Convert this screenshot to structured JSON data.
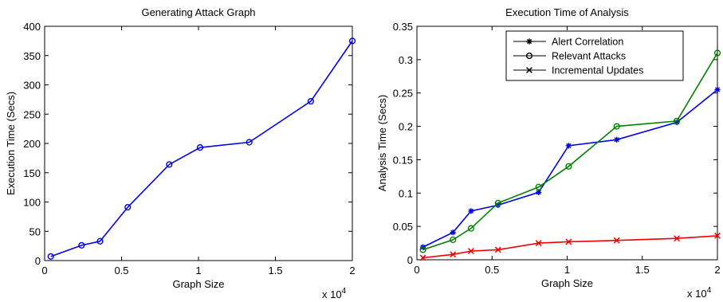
{
  "chart_data": [
    {
      "type": "line",
      "title": "Generating Attack Graph",
      "xlabel": "Graph Size",
      "ylabel": "Execution Time (Secs)",
      "x_multiplier": "x 10",
      "x_multiplier_exp": "4",
      "xlim": [
        0,
        2
      ],
      "ylim": [
        0,
        400
      ],
      "xticks": [
        "0",
        "0.5",
        "1",
        "1.5",
        "2"
      ],
      "yticks": [
        "0",
        "50",
        "100",
        "150",
        "200",
        "250",
        "300",
        "350",
        "400"
      ],
      "grid": false,
      "series": [
        {
          "marker": "circle",
          "color": "#0000ee",
          "x": [
            0.04,
            0.24,
            0.36,
            0.54,
            0.81,
            1.01,
            1.33,
            1.73,
            2.0
          ],
          "y": [
            7,
            26,
            33,
            91,
            164,
            193,
            202,
            272,
            375
          ]
        }
      ]
    },
    {
      "type": "line",
      "title": "Execution Time of Analysis",
      "xlabel": "Graph Size",
      "ylabel": "Analysis Time (Secs)",
      "x_multiplier": "x 10",
      "x_multiplier_exp": "4",
      "xlim": [
        0,
        2
      ],
      "ylim": [
        0,
        0.35
      ],
      "xticks": [
        "0",
        "0.5",
        "1",
        "1.5",
        "2"
      ],
      "yticks": [
        "0",
        "0.05",
        "0.1",
        "0.15",
        "0.2",
        "0.25",
        "0.3",
        "0.35"
      ],
      "grid": false,
      "legend_position": "top-right",
      "series": [
        {
          "name": "Alert Correlation",
          "marker": "asterisk",
          "color": "#0000ee",
          "x": [
            0.04,
            0.24,
            0.36,
            0.54,
            0.81,
            1.01,
            1.33,
            1.73,
            2.0
          ],
          "y": [
            0.019,
            0.041,
            0.073,
            0.082,
            0.101,
            0.171,
            0.18,
            0.206,
            0.255
          ]
        },
        {
          "name": "Relevant Attacks",
          "marker": "circle",
          "color": "#008000",
          "x": [
            0.04,
            0.24,
            0.36,
            0.54,
            0.81,
            1.01,
            1.33,
            1.73,
            2.0
          ],
          "y": [
            0.015,
            0.03,
            0.047,
            0.085,
            0.109,
            0.14,
            0.2,
            0.208,
            0.31
          ]
        },
        {
          "name": "Incremental Updates",
          "marker": "x",
          "color": "#ee0000",
          "x": [
            0.04,
            0.24,
            0.36,
            0.54,
            0.81,
            1.01,
            1.33,
            1.73,
            2.0
          ],
          "y": [
            0.003,
            0.008,
            0.013,
            0.015,
            0.025,
            0.027,
            0.029,
            0.032,
            0.036
          ]
        }
      ]
    }
  ]
}
